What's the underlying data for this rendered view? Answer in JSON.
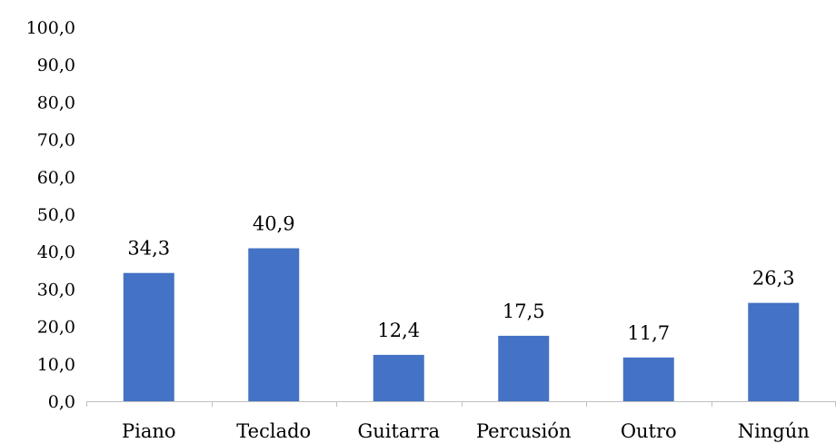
{
  "chart_data": {
    "type": "bar",
    "categories": [
      "Piano",
      "Teclado",
      "Guitarra",
      "Percusión",
      "Outro",
      "Ningún"
    ],
    "values": [
      34.3,
      40.9,
      12.4,
      17.5,
      11.7,
      26.3
    ],
    "value_labels": [
      "34,3",
      "40,9",
      "12,4",
      "17,5",
      "11,7",
      "26,3"
    ],
    "y_ticks": [
      "0,0",
      "10,0",
      "20,0",
      "30,0",
      "40,0",
      "50,0",
      "60,0",
      "70,0",
      "80,0",
      "90,0",
      "100,0"
    ],
    "ylim": [
      0,
      100
    ],
    "grid": false,
    "bar_color": "#4472C4",
    "title": "",
    "xlabel": "",
    "ylabel": ""
  }
}
